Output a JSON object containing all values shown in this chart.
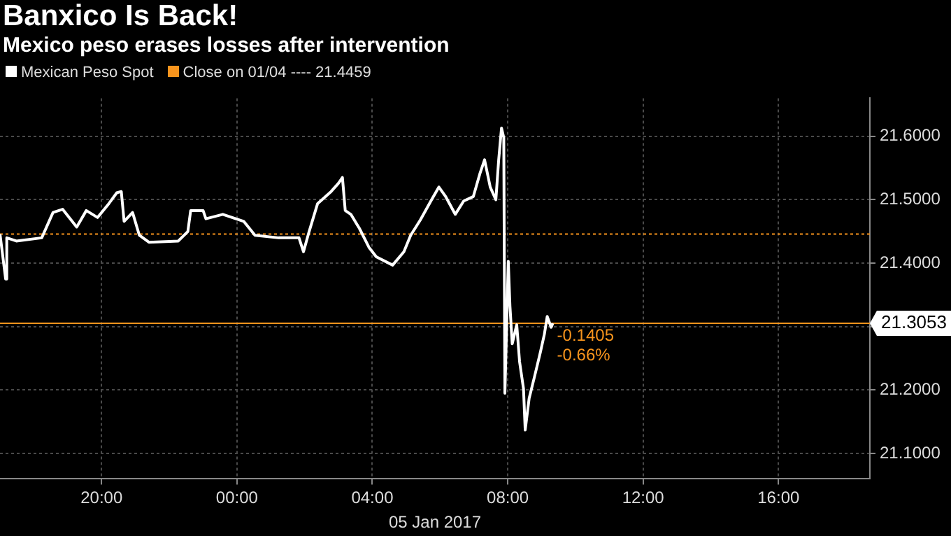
{
  "chart_data": {
    "type": "line",
    "title": "Banxico Is Back!",
    "subtitle": "Mexico peso erases losses after intervention",
    "xlabel": "05 Jan 2017",
    "x": [
      "2017-01-04T17:00",
      "2017-01-04T17:10",
      "2017-01-04T17:12",
      "2017-01-04T17:29",
      "2017-01-04T18:14",
      "2017-01-04T18:34",
      "2017-01-04T18:51",
      "2017-01-04T19:16",
      "2017-01-04T19:33",
      "2017-01-04T19:53",
      "2017-01-04T20:13",
      "2017-01-04T20:27",
      "2017-01-04T20:35",
      "2017-01-04T20:40",
      "2017-01-04T20:55",
      "2017-01-04T21:07",
      "2017-01-04T21:24",
      "2017-01-04T22:16",
      "2017-01-04T22:33",
      "2017-01-04T22:38",
      "2017-01-04T23:00",
      "2017-01-04T23:05",
      "2017-01-04T23:35",
      "2017-01-05T00:12",
      "2017-01-05T00:32",
      "2017-01-05T01:14",
      "2017-01-05T01:50",
      "2017-01-05T01:58",
      "2017-01-05T02:08",
      "2017-01-05T02:23",
      "2017-01-05T02:47",
      "2017-01-05T03:00",
      "2017-01-05T03:07",
      "2017-01-05T03:12",
      "2017-01-05T03:22",
      "2017-01-05T03:37",
      "2017-01-05T03:54",
      "2017-01-05T04:07",
      "2017-01-05T04:36",
      "2017-01-05T04:56",
      "2017-01-05T05:08",
      "2017-01-05T05:25",
      "2017-01-05T05:45",
      "2017-01-05T05:58",
      "2017-01-05T06:10",
      "2017-01-05T06:27",
      "2017-01-05T06:42",
      "2017-01-05T06:59",
      "2017-01-05T07:11",
      "2017-01-05T07:19",
      "2017-01-05T07:29",
      "2017-01-05T07:39",
      "2017-01-05T07:44",
      "2017-01-05T07:49",
      "2017-01-05T07:53",
      "2017-01-05T07:55",
      "2017-01-05T08:01",
      "2017-01-05T08:04",
      "2017-01-05T08:08",
      "2017-01-05T08:16",
      "2017-01-05T08:21",
      "2017-01-05T08:28",
      "2017-01-05T08:31",
      "2017-01-05T08:38",
      "2017-01-05T08:48",
      "2017-01-05T08:58",
      "2017-01-05T09:05",
      "2017-01-05T09:10",
      "2017-01-05T09:17",
      "2017-01-05T09:20"
    ],
    "series": [
      {
        "name": "Mexican Peso Spot",
        "color": "#ffffff",
        "values": [
          21.446,
          21.375,
          21.44,
          21.435,
          21.44,
          21.48,
          21.485,
          21.457,
          21.483,
          21.472,
          21.494,
          21.511,
          21.513,
          21.466,
          21.48,
          21.444,
          21.433,
          21.435,
          21.45,
          21.483,
          21.483,
          21.47,
          21.477,
          21.466,
          21.444,
          21.44,
          21.44,
          21.418,
          21.45,
          21.494,
          21.513,
          21.526,
          21.535,
          21.483,
          21.477,
          21.455,
          21.425,
          21.41,
          21.397,
          21.418,
          21.444,
          21.468,
          21.5,
          21.52,
          21.505,
          21.477,
          21.498,
          21.505,
          21.542,
          21.563,
          21.52,
          21.5,
          21.563,
          21.613,
          21.598,
          21.195,
          21.403,
          21.332,
          21.273,
          21.303,
          21.245,
          21.202,
          21.137,
          21.187,
          21.223,
          21.26,
          21.288,
          21.316,
          21.299,
          21.3053
        ]
      }
    ],
    "xlim": [
      "2017-01-04T17:00",
      "2017-01-05T18:42"
    ],
    "xticks": [
      {
        "value": "2017-01-04T20:00",
        "label": "20:00"
      },
      {
        "value": "2017-01-05T00:00",
        "label": "00:00"
      },
      {
        "value": "2017-01-05T04:00",
        "label": "04:00"
      },
      {
        "value": "2017-01-05T08:00",
        "label": "08:00"
      },
      {
        "value": "2017-01-05T12:00",
        "label": "12:00"
      },
      {
        "value": "2017-01-05T16:00",
        "label": "16:00"
      }
    ],
    "ylim": [
      21.06,
      21.66
    ],
    "yticks": [
      {
        "value": 21.1,
        "label": "21.1000"
      },
      {
        "value": 21.2,
        "label": "21.2000"
      },
      {
        "value": 21.3,
        "label": null
      },
      {
        "value": 21.4,
        "label": "21.4000"
      },
      {
        "value": 21.5,
        "label": "21.5000"
      },
      {
        "value": 21.6,
        "label": "21.6000"
      }
    ],
    "ref_lines": [
      {
        "axis": "y",
        "value": 21.4459,
        "label": "Close on 01/04 ---- 21.4459",
        "color": "#f7941d",
        "line_style": "dotted"
      },
      {
        "axis": "y",
        "value": 21.3053,
        "label": "21.3053",
        "color": "#f7941d",
        "line_style": "solid"
      }
    ],
    "annotations": [
      {
        "text": "-0.1405",
        "x": "2017-01-05T09:20",
        "y": 21.3053
      },
      {
        "text": "-0.66%",
        "x": "2017-01-05T09:20",
        "y": 21.3053
      }
    ],
    "grid": true,
    "legend": "top left",
    "marker": "none",
    "line_style": "solid"
  }
}
